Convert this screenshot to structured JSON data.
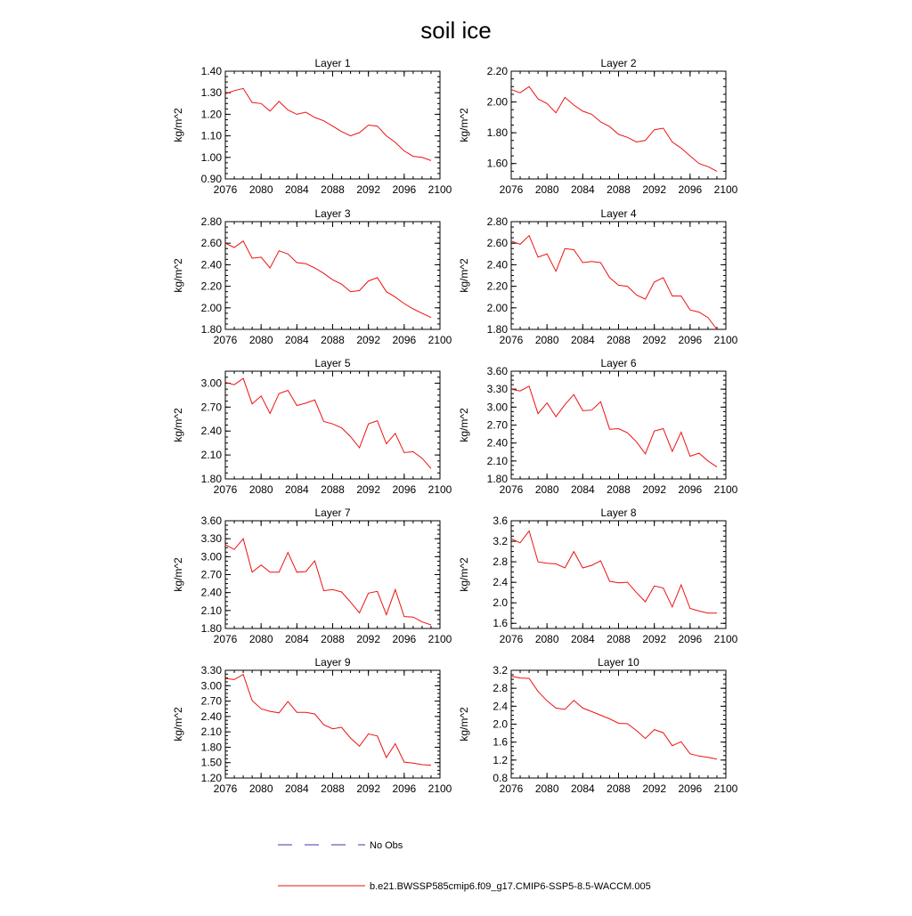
{
  "figure": {
    "title": "soil ice"
  },
  "legend": [
    {
      "label": "No Obs",
      "color": "#3a3aa8",
      "style": "dashed"
    },
    {
      "label": "b.e21.BWSSP585cmip6.f09_g17.CMIP6-SSP5-8.5-WACCM.005",
      "color": "#ee1111",
      "style": "solid"
    }
  ],
  "chart_data": [
    {
      "type": "line",
      "title": "Layer 1",
      "ylabel": "kg/m^2",
      "x": [
        2076,
        2077,
        2078,
        2079,
        2080,
        2081,
        2082,
        2083,
        2084,
        2085,
        2086,
        2087,
        2088,
        2089,
        2090,
        2091,
        2092,
        2093,
        2094,
        2095,
        2096,
        2097,
        2098,
        2099
      ],
      "xlim": [
        2076,
        2100
      ],
      "xticks": [
        "2076",
        "2080",
        "2084",
        "2088",
        "2092",
        "2096",
        "2100"
      ],
      "ylim": [
        0.9,
        1.4
      ],
      "yticks": [
        "0.90",
        "1.00",
        "1.10",
        "1.20",
        "1.30",
        "1.40"
      ],
      "series": [
        {
          "color": "#ee1111",
          "values": [
            1.295,
            1.31,
            1.32,
            1.255,
            1.25,
            1.215,
            1.26,
            1.22,
            1.2,
            1.21,
            1.185,
            1.17,
            1.145,
            1.12,
            1.1,
            1.115,
            1.15,
            1.145,
            1.1,
            1.07,
            1.03,
            1.005,
            1.0,
            0.985
          ]
        }
      ]
    },
    {
      "type": "line",
      "title": "Layer 2",
      "ylabel": "kg/m^2",
      "x": [
        2076,
        2077,
        2078,
        2079,
        2080,
        2081,
        2082,
        2083,
        2084,
        2085,
        2086,
        2087,
        2088,
        2089,
        2090,
        2091,
        2092,
        2093,
        2094,
        2095,
        2096,
        2097,
        2098,
        2099
      ],
      "xlim": [
        2076,
        2100
      ],
      "xticks": [
        "2076",
        "2080",
        "2084",
        "2088",
        "2092",
        "2096",
        "2100"
      ],
      "ylim": [
        1.5,
        2.2
      ],
      "yticks": [
        "1.60",
        "1.80",
        "2.00",
        "2.20"
      ],
      "series": [
        {
          "color": "#ee1111",
          "values": [
            2.08,
            2.06,
            2.1,
            2.02,
            1.99,
            1.93,
            2.03,
            1.98,
            1.94,
            1.92,
            1.87,
            1.84,
            1.79,
            1.77,
            1.74,
            1.75,
            1.82,
            1.83,
            1.74,
            1.7,
            1.65,
            1.6,
            1.58,
            1.55
          ]
        }
      ]
    },
    {
      "type": "line",
      "title": "Layer 3",
      "ylabel": "kg/m^2",
      "x": [
        2076,
        2077,
        2078,
        2079,
        2080,
        2081,
        2082,
        2083,
        2084,
        2085,
        2086,
        2087,
        2088,
        2089,
        2090,
        2091,
        2092,
        2093,
        2094,
        2095,
        2096,
        2097,
        2098,
        2099
      ],
      "xlim": [
        2076,
        2100
      ],
      "xticks": [
        "2076",
        "2080",
        "2084",
        "2088",
        "2092",
        "2096",
        "2100"
      ],
      "ylim": [
        1.8,
        2.8
      ],
      "yticks": [
        "1.80",
        "2.00",
        "2.20",
        "2.40",
        "2.60",
        "2.80"
      ],
      "series": [
        {
          "color": "#ee1111",
          "values": [
            2.6,
            2.56,
            2.62,
            2.46,
            2.47,
            2.37,
            2.53,
            2.5,
            2.42,
            2.41,
            2.37,
            2.32,
            2.26,
            2.22,
            2.15,
            2.16,
            2.25,
            2.28,
            2.15,
            2.1,
            2.04,
            1.99,
            1.95,
            1.91
          ]
        }
      ]
    },
    {
      "type": "line",
      "title": "Layer 4",
      "ylabel": "kg/m^2",
      "x": [
        2076,
        2077,
        2078,
        2079,
        2080,
        2081,
        2082,
        2083,
        2084,
        2085,
        2086,
        2087,
        2088,
        2089,
        2090,
        2091,
        2092,
        2093,
        2094,
        2095,
        2096,
        2097,
        2098,
        2099
      ],
      "xlim": [
        2076,
        2100
      ],
      "xticks": [
        "2076",
        "2080",
        "2084",
        "2088",
        "2092",
        "2096",
        "2100"
      ],
      "ylim": [
        1.8,
        2.8
      ],
      "yticks": [
        "1.80",
        "2.00",
        "2.20",
        "2.40",
        "2.60",
        "2.80"
      ],
      "series": [
        {
          "color": "#ee1111",
          "values": [
            2.62,
            2.59,
            2.67,
            2.47,
            2.5,
            2.34,
            2.55,
            2.54,
            2.42,
            2.43,
            2.42,
            2.28,
            2.21,
            2.2,
            2.12,
            2.08,
            2.24,
            2.28,
            2.11,
            2.11,
            1.98,
            1.96,
            1.91,
            1.8
          ]
        }
      ]
    },
    {
      "type": "line",
      "title": "Layer 5",
      "ylabel": "kg/m^2",
      "x": [
        2076,
        2077,
        2078,
        2079,
        2080,
        2081,
        2082,
        2083,
        2084,
        2085,
        2086,
        2087,
        2088,
        2089,
        2090,
        2091,
        2092,
        2093,
        2094,
        2095,
        2096,
        2097,
        2098,
        2099
      ],
      "xlim": [
        2076,
        2100
      ],
      "xticks": [
        "2076",
        "2080",
        "2084",
        "2088",
        "2092",
        "2096",
        "2100"
      ],
      "ylim": [
        1.8,
        3.15
      ],
      "yticks": [
        "1.80",
        "2.10",
        "2.40",
        "2.70",
        "3.00"
      ],
      "series": [
        {
          "color": "#ee1111",
          "values": [
            3.01,
            2.98,
            3.06,
            2.74,
            2.84,
            2.62,
            2.87,
            2.91,
            2.72,
            2.75,
            2.79,
            2.52,
            2.49,
            2.44,
            2.33,
            2.19,
            2.49,
            2.53,
            2.24,
            2.37,
            2.13,
            2.14,
            2.06,
            1.93
          ]
        }
      ]
    },
    {
      "type": "line",
      "title": "Layer 6",
      "ylabel": "kg/m^2",
      "x": [
        2076,
        2077,
        2078,
        2079,
        2080,
        2081,
        2082,
        2083,
        2084,
        2085,
        2086,
        2087,
        2088,
        2089,
        2090,
        2091,
        2092,
        2093,
        2094,
        2095,
        2096,
        2097,
        2098,
        2099
      ],
      "xlim": [
        2076,
        2100
      ],
      "xticks": [
        "2076",
        "2080",
        "2084",
        "2088",
        "2092",
        "2096",
        "2100"
      ],
      "ylim": [
        1.8,
        3.6
      ],
      "yticks": [
        "1.80",
        "2.10",
        "2.40",
        "2.70",
        "3.00",
        "3.30",
        "3.60"
      ],
      "series": [
        {
          "color": "#ee1111",
          "values": [
            3.3,
            3.27,
            3.35,
            2.89,
            3.07,
            2.84,
            3.04,
            3.21,
            2.94,
            2.95,
            3.09,
            2.63,
            2.64,
            2.57,
            2.42,
            2.22,
            2.6,
            2.64,
            2.26,
            2.58,
            2.18,
            2.23,
            2.1,
            2.0
          ]
        }
      ]
    },
    {
      "type": "line",
      "title": "Layer 7",
      "ylabel": "kg/m^2",
      "x": [
        2076,
        2077,
        2078,
        2079,
        2080,
        2081,
        2082,
        2083,
        2084,
        2085,
        2086,
        2087,
        2088,
        2089,
        2090,
        2091,
        2092,
        2093,
        2094,
        2095,
        2096,
        2097,
        2098,
        2099
      ],
      "xlim": [
        2076,
        2100
      ],
      "xticks": [
        "2076",
        "2080",
        "2084",
        "2088",
        "2092",
        "2096",
        "2100"
      ],
      "ylim": [
        1.8,
        3.6
      ],
      "yticks": [
        "1.80",
        "2.10",
        "2.40",
        "2.70",
        "3.00",
        "3.30",
        "3.60"
      ],
      "series": [
        {
          "color": "#ee1111",
          "values": [
            3.2,
            3.12,
            3.3,
            2.74,
            2.86,
            2.74,
            2.74,
            3.07,
            2.74,
            2.75,
            2.93,
            2.43,
            2.45,
            2.41,
            2.24,
            2.06,
            2.39,
            2.42,
            2.03,
            2.45,
            2.0,
            1.99,
            1.91,
            1.86
          ]
        }
      ]
    },
    {
      "type": "line",
      "title": "Layer 8",
      "ylabel": "kg/m^2",
      "x": [
        2076,
        2077,
        2078,
        2079,
        2080,
        2081,
        2082,
        2083,
        2084,
        2085,
        2086,
        2087,
        2088,
        2089,
        2090,
        2091,
        2092,
        2093,
        2094,
        2095,
        2096,
        2097,
        2098,
        2099
      ],
      "xlim": [
        2076,
        2100
      ],
      "xticks": [
        "2076",
        "2080",
        "2084",
        "2088",
        "2092",
        "2096",
        "2100"
      ],
      "ylim": [
        1.5,
        3.6
      ],
      "yticks": [
        "1.6",
        "2.0",
        "2.4",
        "2.8",
        "3.2",
        "3.6"
      ],
      "series": [
        {
          "color": "#ee1111",
          "values": [
            3.25,
            3.17,
            3.4,
            2.8,
            2.77,
            2.76,
            2.68,
            3.0,
            2.68,
            2.73,
            2.82,
            2.42,
            2.39,
            2.4,
            2.2,
            2.02,
            2.33,
            2.29,
            1.92,
            2.35,
            1.89,
            1.84,
            1.8,
            1.8
          ]
        }
      ]
    },
    {
      "type": "line",
      "title": "Layer 9",
      "ylabel": "kg/m^2",
      "x": [
        2076,
        2077,
        2078,
        2079,
        2080,
        2081,
        2082,
        2083,
        2084,
        2085,
        2086,
        2087,
        2088,
        2089,
        2090,
        2091,
        2092,
        2093,
        2094,
        2095,
        2096,
        2097,
        2098,
        2099
      ],
      "xlim": [
        2076,
        2100
      ],
      "xticks": [
        "2076",
        "2080",
        "2084",
        "2088",
        "2092",
        "2096",
        "2100"
      ],
      "ylim": [
        1.2,
        3.3
      ],
      "yticks": [
        "1.20",
        "1.50",
        "1.80",
        "2.10",
        "2.40",
        "2.70",
        "3.00",
        "3.30"
      ],
      "series": [
        {
          "color": "#ee1111",
          "values": [
            3.14,
            3.12,
            3.22,
            2.71,
            2.55,
            2.5,
            2.47,
            2.69,
            2.48,
            2.48,
            2.45,
            2.24,
            2.16,
            2.19,
            1.98,
            1.82,
            2.06,
            2.02,
            1.6,
            1.87,
            1.51,
            1.49,
            1.46,
            1.45
          ]
        }
      ]
    },
    {
      "type": "line",
      "title": "Layer 10",
      "ylabel": "kg/m^2",
      "x": [
        2076,
        2077,
        2078,
        2079,
        2080,
        2081,
        2082,
        2083,
        2084,
        2085,
        2086,
        2087,
        2088,
        2089,
        2090,
        2091,
        2092,
        2093,
        2094,
        2095,
        2096,
        2097,
        2098,
        2099
      ],
      "xlim": [
        2076,
        2100
      ],
      "xticks": [
        "2076",
        "2080",
        "2084",
        "2088",
        "2092",
        "2096",
        "2100"
      ],
      "ylim": [
        0.8,
        3.2
      ],
      "yticks": [
        "0.8",
        "1.2",
        "1.6",
        "2.0",
        "2.4",
        "2.8",
        "3.2"
      ],
      "series": [
        {
          "color": "#ee1111",
          "values": [
            3.07,
            3.03,
            3.02,
            2.73,
            2.52,
            2.36,
            2.33,
            2.53,
            2.36,
            2.28,
            2.2,
            2.12,
            2.02,
            2.01,
            1.86,
            1.68,
            1.88,
            1.81,
            1.52,
            1.61,
            1.34,
            1.29,
            1.26,
            1.22
          ]
        }
      ]
    }
  ]
}
